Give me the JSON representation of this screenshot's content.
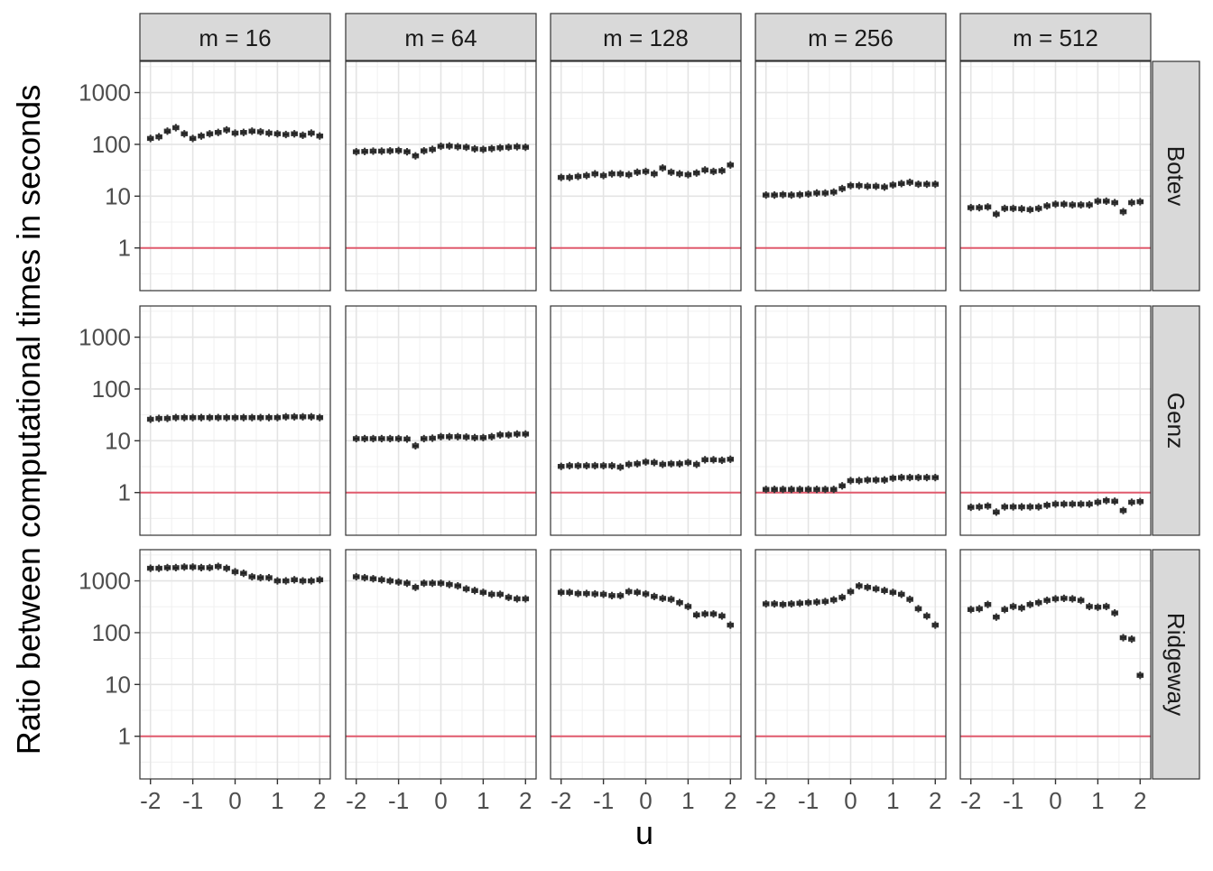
{
  "chart_data": {
    "type": "boxplot",
    "xlabel": "u",
    "ylabel": "Ratio between computational times in seconds",
    "y_scale": "log10",
    "ylim": [
      0.15,
      4000
    ],
    "xlim": [
      -2.25,
      2.25
    ],
    "y_ticks": [
      1,
      10,
      100,
      1000
    ],
    "y_tick_labels": [
      "1",
      "10",
      "100",
      "1000"
    ],
    "x_ticks": [
      -2,
      -1,
      0,
      1,
      2
    ],
    "x_tick_labels": [
      "-2",
      "-1",
      "0",
      "1",
      "2"
    ],
    "grid": true,
    "reference_line": {
      "y": 1,
      "color": "#e05a6d"
    },
    "u": [
      -2.0,
      -1.8,
      -1.6,
      -1.4,
      -1.2,
      -1.0,
      -0.8,
      -0.6,
      -0.4,
      -0.2,
      0.0,
      0.2,
      0.4,
      0.6,
      0.8,
      1.0,
      1.2,
      1.4,
      1.6,
      1.8,
      2.0
    ],
    "columns": [
      "m = 16",
      "m = 64",
      "m = 128",
      "m = 256",
      "m = 512"
    ],
    "rows": [
      "Botev",
      "Genz",
      "Ridgeway"
    ],
    "medians": {
      "Botev": [
        [
          130,
          140,
          180,
          210,
          160,
          130,
          145,
          160,
          170,
          190,
          165,
          170,
          180,
          175,
          165,
          160,
          155,
          160,
          150,
          165,
          145
        ],
        [
          72,
          73,
          74,
          74,
          75,
          76,
          72,
          60,
          75,
          80,
          92,
          93,
          90,
          88,
          82,
          80,
          83,
          86,
          88,
          90,
          88
        ],
        [
          23,
          23,
          24,
          25,
          27,
          25,
          27,
          27,
          26,
          29,
          30,
          27,
          35,
          29,
          27,
          26,
          28,
          32,
          30,
          31,
          40
        ],
        [
          10.5,
          10.5,
          10.7,
          10.5,
          10.7,
          11.0,
          11.5,
          11.5,
          12.0,
          14.0,
          16.0,
          16.0,
          15.5,
          15.5,
          15.0,
          16.5,
          17.5,
          18.5,
          17.0,
          17.0,
          17.0
        ],
        [
          6.0,
          6.0,
          6.2,
          4.5,
          5.8,
          5.8,
          5.7,
          5.5,
          5.8,
          6.5,
          7.0,
          7.0,
          6.8,
          6.8,
          6.8,
          8.0,
          8.0,
          7.5,
          5.0,
          7.5,
          7.8
        ]
      ],
      "Genz": [
        [
          26,
          27,
          27,
          28,
          28,
          28,
          28,
          28,
          28,
          28,
          28,
          28,
          28,
          28,
          28,
          28,
          29,
          29,
          29,
          29,
          28
        ],
        [
          11.0,
          11.0,
          11.0,
          11.0,
          11.0,
          11.0,
          10.8,
          8.0,
          11.0,
          11.2,
          12.0,
          12.0,
          12.0,
          11.8,
          11.5,
          11.5,
          12.0,
          13.0,
          13.0,
          13.5,
          13.5
        ],
        [
          3.2,
          3.3,
          3.3,
          3.3,
          3.3,
          3.3,
          3.3,
          3.1,
          3.5,
          3.6,
          3.9,
          3.8,
          3.5,
          3.6,
          3.6,
          3.8,
          3.5,
          4.3,
          4.3,
          4.2,
          4.4
        ],
        [
          1.15,
          1.15,
          1.15,
          1.15,
          1.15,
          1.15,
          1.15,
          1.15,
          1.15,
          1.35,
          1.7,
          1.7,
          1.75,
          1.75,
          1.75,
          1.9,
          1.95,
          1.95,
          1.95,
          1.95,
          1.95
        ],
        [
          0.52,
          0.53,
          0.55,
          0.42,
          0.53,
          0.53,
          0.53,
          0.53,
          0.53,
          0.57,
          0.6,
          0.6,
          0.6,
          0.6,
          0.6,
          0.65,
          0.7,
          0.68,
          0.45,
          0.65,
          0.67
        ]
      ],
      "Ridgeway": [
        [
          1750,
          1750,
          1800,
          1800,
          1850,
          1850,
          1800,
          1800,
          1900,
          1750,
          1500,
          1400,
          1200,
          1150,
          1150,
          1000,
          1000,
          1050,
          1000,
          1000,
          1050
        ],
        [
          1200,
          1150,
          1100,
          1050,
          1000,
          950,
          900,
          750,
          900,
          900,
          900,
          850,
          800,
          700,
          650,
          600,
          550,
          550,
          480,
          450,
          450
        ],
        [
          600,
          600,
          570,
          570,
          560,
          550,
          520,
          520,
          620,
          600,
          560,
          500,
          460,
          440,
          380,
          320,
          220,
          230,
          230,
          210,
          140
        ],
        [
          360,
          360,
          350,
          360,
          370,
          380,
          390,
          400,
          430,
          480,
          620,
          800,
          750,
          700,
          650,
          600,
          550,
          440,
          290,
          210,
          140
        ],
        [
          280,
          290,
          350,
          200,
          280,
          320,
          300,
          350,
          380,
          420,
          450,
          460,
          450,
          420,
          320,
          310,
          320,
          240,
          80,
          75,
          15
        ]
      ]
    }
  }
}
